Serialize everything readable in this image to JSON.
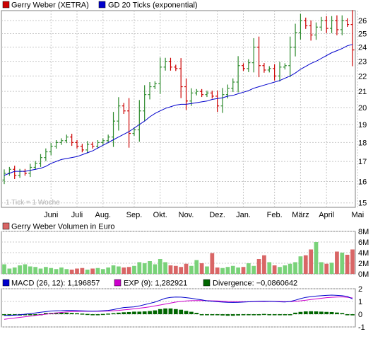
{
  "colors": {
    "up": "#2e8b2e",
    "down": "#cc0000",
    "ma": "#0000cc",
    "vol_up": "#79d279",
    "vol_down": "#d96666",
    "macd": "#0000cc",
    "exp": "#cc00cc",
    "div": "#006600",
    "grid": "#c8c8c8",
    "frame": "#808080"
  },
  "chart_data": [
    {
      "type": "candlestick",
      "legend": [
        {
          "label": "Gerry Weber (XETRA)",
          "color": "#cc0000"
        },
        {
          "label": "GD 20 Ticks (exponential)",
          "color": "#0000cc"
        }
      ],
      "note": "1 Tick = 1 Woche",
      "scale": "log",
      "ylim": [
        14.8,
        26.8
      ],
      "yticks": [
        15,
        16,
        17,
        18,
        19,
        20,
        21,
        22,
        23,
        24,
        25,
        26
      ],
      "xticks": [
        "Juni",
        "Juli",
        "Aug.",
        "Sep.",
        "Okt.",
        "Nov.",
        "Dez.",
        "Jan.",
        "Feb.",
        "März",
        "April",
        "Mai"
      ],
      "xtick_week": [
        9,
        14,
        19,
        25,
        30,
        35,
        41,
        46,
        52,
        57,
        62,
        68
      ],
      "close": [
        16.4,
        16.6,
        16.3,
        16.5,
        16.4,
        16.7,
        16.9,
        17.2,
        17.5,
        17.8,
        18.0,
        18.1,
        18.3,
        18.0,
        17.8,
        17.6,
        17.9,
        17.8,
        18.0,
        18.1,
        18.3,
        19.2,
        20.1,
        19.8,
        18.5,
        18.7,
        19.8,
        20.8,
        21.3,
        21.5,
        22.6,
        23.0,
        22.6,
        22.5,
        21.3,
        20.4,
        20.9,
        21.0,
        20.8,
        20.9,
        20.7,
        20.1,
        20.8,
        21.2,
        21.6,
        22.7,
        22.5,
        22.9,
        24.0,
        22.7,
        22.4,
        22.5,
        22.0,
        22.6,
        22.7,
        24.0,
        25.1,
        26.0,
        25.6,
        24.9,
        25.5,
        26.0,
        25.4,
        26.0,
        25.3,
        26.0,
        25.7,
        23.8
      ],
      "ema20": [
        16.3,
        16.4,
        16.5,
        16.5,
        16.5,
        16.55,
        16.6,
        16.65,
        16.75,
        16.9,
        17.0,
        17.1,
        17.15,
        17.2,
        17.25,
        17.35,
        17.45,
        17.55,
        17.7,
        17.85,
        18.0,
        18.15,
        18.3,
        18.45,
        18.6,
        18.8,
        19.0,
        19.2,
        19.45,
        19.65,
        19.8,
        19.95,
        20.05,
        20.15,
        20.2,
        20.2,
        20.25,
        20.3,
        20.35,
        20.4,
        20.5,
        20.55,
        20.6,
        20.7,
        20.75,
        20.85,
        20.95,
        21.05,
        21.2,
        21.3,
        21.4,
        21.5,
        21.6,
        21.7,
        21.85,
        22.0,
        22.2,
        22.45,
        22.65,
        22.85,
        23.0,
        23.2,
        23.4,
        23.6,
        23.75,
        23.9,
        24.1,
        24.2
      ]
    },
    {
      "type": "bar",
      "legend": [
        {
          "label": "Gerry Weber Volumen in Euro",
          "color": "#d96666"
        }
      ],
      "ylim": [
        0,
        8
      ],
      "yticks": [
        0,
        2,
        4,
        6,
        8
      ],
      "ytick_labels": [
        "0M",
        "2M",
        "4M",
        "6M",
        "8M"
      ],
      "values": [
        1.8,
        1.0,
        1.2,
        1.6,
        1.8,
        1.4,
        1.3,
        1.0,
        1.3,
        1.1,
        0.9,
        1.2,
        0.9,
        0.8,
        1.0,
        1.1,
        0.8,
        1.0,
        1.1,
        0.9,
        1.2,
        1.6,
        1.4,
        1.2,
        1.3,
        1.5,
        2.2,
        2.0,
        2.4,
        1.8,
        2.8,
        2.2,
        1.6,
        1.5,
        1.3,
        1.9,
        1.5,
        2.6,
        2.0,
        1.4,
        3.9,
        1.2,
        1.1,
        1.3,
        1.5,
        1.2,
        1.3,
        2.0,
        1.5,
        2.8,
        3.5,
        2.2,
        1.6,
        1.3,
        1.6,
        1.9,
        2.2,
        3.3,
        3.5,
        4.6,
        6.0,
        2.2,
        1.9,
        2.1,
        4.2,
        4.0,
        3.6,
        4.6
      ],
      "up": [
        1,
        1,
        1,
        1,
        1,
        1,
        1,
        1,
        1,
        1,
        1,
        1,
        1,
        0,
        0,
        0,
        1,
        0,
        1,
        1,
        1,
        1,
        1,
        0,
        0,
        1,
        1,
        1,
        1,
        1,
        1,
        1,
        0,
        0,
        0,
        0,
        1,
        1,
        0,
        1,
        0,
        0,
        1,
        1,
        1,
        1,
        0,
        1,
        1,
        0,
        0,
        1,
        0,
        1,
        1,
        1,
        1,
        1,
        0,
        0,
        1,
        1,
        0,
        1,
        0,
        1,
        0,
        0
      ]
    },
    {
      "type": "line",
      "legend": [
        {
          "label": "MACD (26, 12): 1,196857",
          "color": "#0000cc"
        },
        {
          "label": "EXP (9): 1,282921",
          "color": "#cc00cc"
        },
        {
          "label": "Divergence: −0,0860642",
          "color": "#006600"
        }
      ],
      "ylim": [
        -1,
        2
      ],
      "yticks": [
        -1,
        0,
        1,
        2
      ],
      "series": [
        {
          "name": "MACD (26, 12)",
          "values": [
            -0.1,
            -0.1,
            -0.08,
            -0.05,
            0.0,
            0.05,
            0.1,
            0.15,
            0.2,
            0.25,
            0.27,
            0.28,
            0.3,
            0.3,
            0.28,
            0.26,
            0.25,
            0.24,
            0.25,
            0.27,
            0.3,
            0.36,
            0.45,
            0.52,
            0.55,
            0.58,
            0.65,
            0.75,
            0.85,
            0.95,
            1.1,
            1.25,
            1.32,
            1.35,
            1.34,
            1.3,
            1.25,
            1.18,
            1.12,
            1.05,
            1.02,
            0.98,
            0.95,
            0.93,
            0.92,
            0.93,
            0.95,
            0.97,
            1.0,
            1.02,
            1.03,
            1.02,
            1.0,
            0.97,
            0.96,
            1.0,
            1.1,
            1.22,
            1.32,
            1.38,
            1.42,
            1.45,
            1.48,
            1.5,
            1.48,
            1.45,
            1.4,
            1.2
          ]
        },
        {
          "name": "EXP (9)",
          "values": [
            -0.4,
            -0.35,
            -0.3,
            -0.25,
            -0.2,
            -0.15,
            -0.1,
            -0.05,
            0.0,
            0.05,
            0.1,
            0.14,
            0.18,
            0.2,
            0.22,
            0.23,
            0.23,
            0.23,
            0.23,
            0.24,
            0.25,
            0.27,
            0.3,
            0.34,
            0.38,
            0.42,
            0.47,
            0.52,
            0.58,
            0.65,
            0.72,
            0.8,
            0.88,
            0.95,
            1.0,
            1.04,
            1.06,
            1.07,
            1.07,
            1.06,
            1.05,
            1.04,
            1.02,
            1.0,
            0.99,
            0.98,
            0.98,
            0.98,
            0.99,
            1.0,
            1.0,
            1.01,
            1.01,
            1.0,
            0.99,
            0.99,
            1.01,
            1.05,
            1.1,
            1.15,
            1.2,
            1.25,
            1.3,
            1.33,
            1.35,
            1.36,
            1.33,
            1.28
          ]
        },
        {
          "name": "Divergence",
          "values": [
            0.0,
            -0.05,
            -0.08,
            -0.1,
            -0.08,
            -0.05,
            -0.05,
            -0.05,
            0.1,
            0.1,
            0.12,
            0.12,
            0.12,
            0.1,
            0.08,
            0.05,
            0.02,
            0.0,
            0.0,
            0.02,
            0.05,
            0.08,
            0.12,
            0.15,
            0.17,
            0.2,
            0.2,
            0.22,
            0.25,
            0.3,
            0.4,
            0.45,
            0.45,
            0.4,
            0.35,
            0.26,
            0.19,
            0.11,
            0.0,
            0.0,
            -0.03,
            -0.06,
            -0.1,
            -0.12,
            -0.12,
            -0.1,
            -0.05,
            0.0,
            0.0,
            0.0,
            0.02,
            0.0,
            0.0,
            -0.05,
            0.0,
            0.0,
            0.12,
            0.18,
            0.22,
            0.23,
            0.22,
            0.2,
            0.18,
            0.17,
            0.13,
            0.09,
            0.0,
            -0.09
          ]
        }
      ]
    }
  ]
}
